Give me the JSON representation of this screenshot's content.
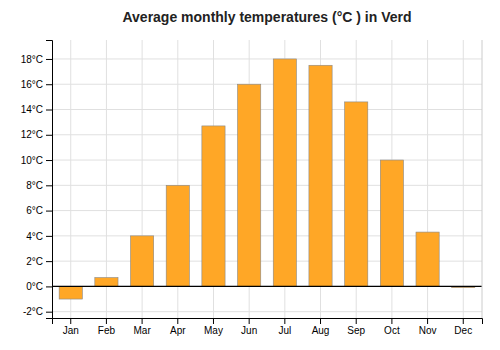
{
  "chart_data": {
    "type": "bar",
    "title": "Average monthly temperatures (°C ) in Verd",
    "categories": [
      "Jan",
      "Feb",
      "Mar",
      "Apr",
      "May",
      "Jun",
      "Jul",
      "Aug",
      "Sep",
      "Oct",
      "Nov",
      "Dec"
    ],
    "values": [
      -1.0,
      0.7,
      4.0,
      8.0,
      12.7,
      16.0,
      18.0,
      17.5,
      14.6,
      10.0,
      4.3,
      -0.1
    ],
    "color": "#FFA726",
    "ylim": [
      -2.5,
      19.5
    ],
    "yticks": [
      {
        "value": -2,
        "label": "-2°C"
      },
      {
        "value": 0,
        "label": "0°C"
      },
      {
        "value": 2,
        "label": "2°C"
      },
      {
        "value": 4,
        "label": "4°C"
      },
      {
        "value": 6,
        "label": "6°C"
      },
      {
        "value": 8,
        "label": "8°C"
      },
      {
        "value": 10,
        "label": "10°C"
      },
      {
        "value": 12,
        "label": "12°C"
      },
      {
        "value": 14,
        "label": "14°C"
      },
      {
        "value": 16,
        "label": "16°C"
      },
      {
        "value": 18,
        "label": "18°C"
      }
    ],
    "grid": true
  }
}
